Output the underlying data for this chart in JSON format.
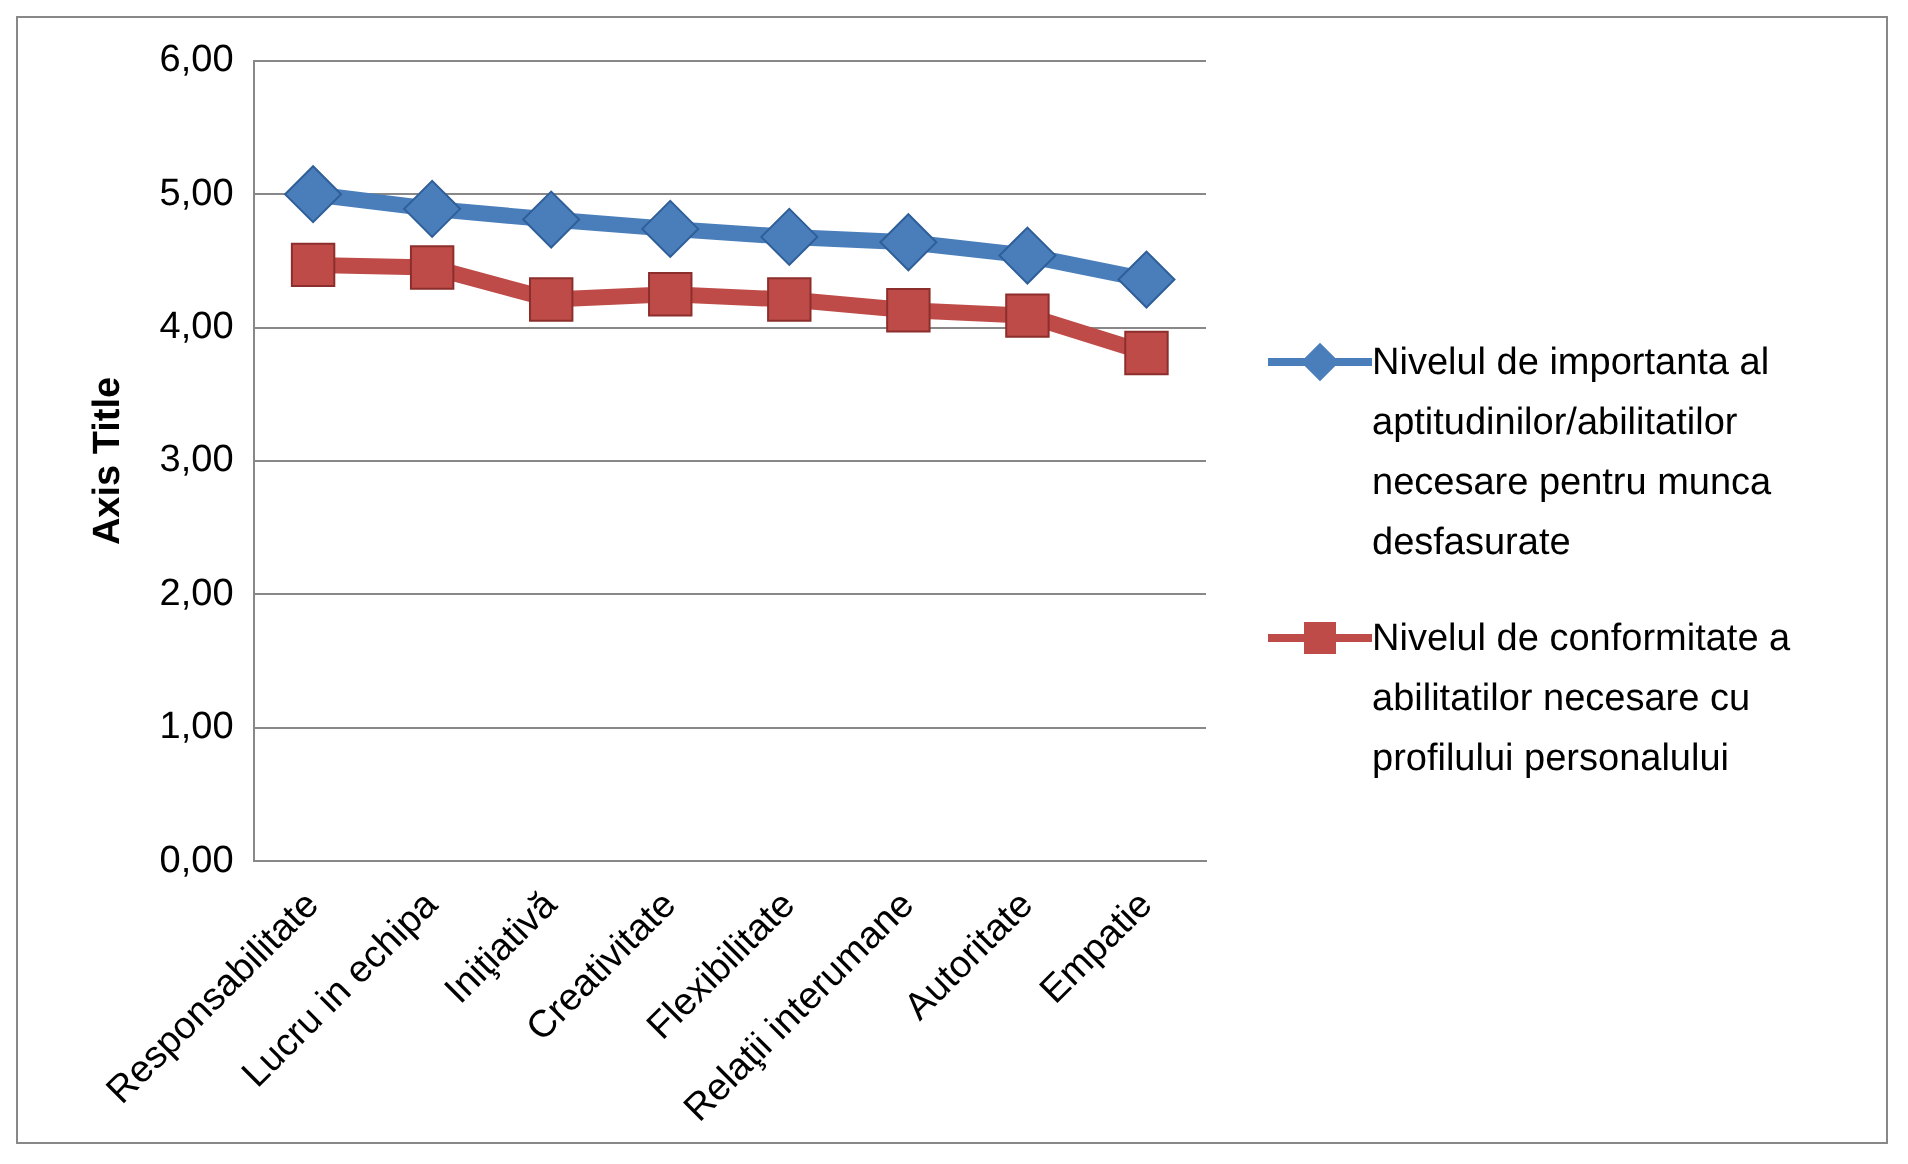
{
  "chart_data": {
    "type": "line",
    "ylabel": "Axis Title",
    "categories": [
      "Responsabilitate",
      "Lucru in echipa",
      "Iniţiativă",
      "Creativitate",
      "Flexibilitate",
      "Relaţii interumane",
      "Autoritate",
      "Empatie"
    ],
    "series": [
      {
        "name": "Nivelul de importanta al aptitudinilor/abilitatilor necesare pentru munca desfasurate",
        "color": "#4a7ebb",
        "marker": "diamond",
        "values": [
          5.0,
          4.89,
          4.81,
          4.74,
          4.68,
          4.64,
          4.54,
          4.36
        ]
      },
      {
        "name": "Nivelul de conformitate a abilitatilor necesare cu profilului personalului",
        "color": "#be4b48",
        "marker": "square",
        "values": [
          4.47,
          4.45,
          4.21,
          4.25,
          4.21,
          4.13,
          4.09,
          3.81
        ]
      }
    ],
    "ylim": [
      0,
      6
    ],
    "yticks": [
      {
        "value": 0,
        "label": "0,00"
      },
      {
        "value": 1,
        "label": "1,00"
      },
      {
        "value": 2,
        "label": "2,00"
      },
      {
        "value": 3,
        "label": "3,00"
      },
      {
        "value": 4,
        "label": "4,00"
      },
      {
        "value": 5,
        "label": "5,00"
      },
      {
        "value": 6,
        "label": "6,00"
      }
    ],
    "grid": "y",
    "legend": "right"
  }
}
